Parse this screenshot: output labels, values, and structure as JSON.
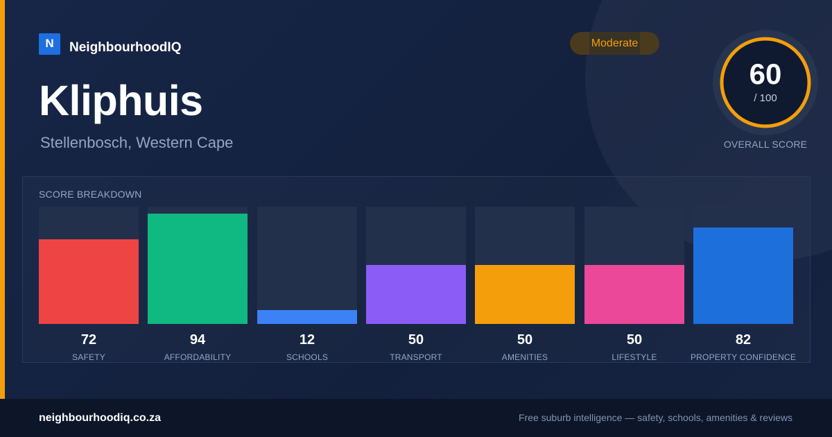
{
  "brand": {
    "logo_letter": "N",
    "name": "NeighbourhoodIQ"
  },
  "suburb": {
    "name": "Kliphuis",
    "region": "Stellenbosch, Western Cape"
  },
  "rating": {
    "label": "Moderate",
    "color": "#f59e0b"
  },
  "overall": {
    "score": "60",
    "max": "/ 100",
    "caption": "OVERALL SCORE",
    "score_value": 60
  },
  "breakdown": {
    "title": "SCORE BREAKDOWN",
    "items": [
      {
        "value": 72,
        "display": "72",
        "label": "SAFETY",
        "color": "#ef4444"
      },
      {
        "value": 94,
        "display": "94",
        "label": "AFFORDABILITY",
        "color": "#10b981"
      },
      {
        "value": 12,
        "display": "12",
        "label": "SCHOOLS",
        "color": "#3b82f6"
      },
      {
        "value": 50,
        "display": "50",
        "label": "TRANSPORT",
        "color": "#8b5cf6"
      },
      {
        "value": 50,
        "display": "50",
        "label": "AMENITIES",
        "color": "#f59e0b"
      },
      {
        "value": 50,
        "display": "50",
        "label": "LIFESTYLE",
        "color": "#ec4899"
      },
      {
        "value": 82,
        "display": "82",
        "label": "PROPERTY CONFIDENCE",
        "color": "#1d6fdc"
      }
    ]
  },
  "footer": {
    "domain": "neighbourhoodiq.co.za",
    "tagline": "Free suburb intelligence — safety, schools, amenities & reviews"
  }
}
